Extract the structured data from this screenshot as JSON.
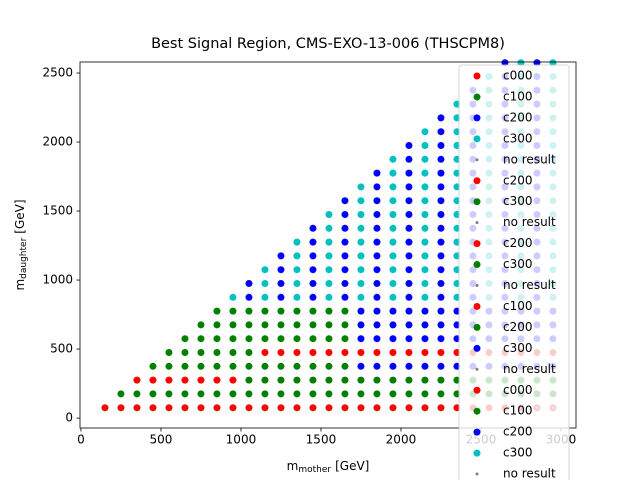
{
  "chart_data": {
    "type": "scatter",
    "title": "Best Signal Region, CMS-EXO-13-006 (THSCPM8)",
    "xlabel": {
      "base": "m",
      "sub": "mother",
      "unit": "[GeV]"
    },
    "ylabel": {
      "base": "m",
      "sub": "daughter",
      "unit": "[GeV]"
    },
    "xlim": [
      -6,
      3094
    ],
    "ylim": [
      -72,
      2580
    ],
    "xticks": [
      0,
      500,
      1000,
      1500,
      2000,
      2500,
      3000
    ],
    "yticks": [
      0,
      500,
      1000,
      1500,
      2000,
      2500
    ],
    "grid": false,
    "legend_loc": "upper right",
    "series": [
      {
        "name": "c000",
        "color": "#ff0000",
        "marker_size": 3.5,
        "x": [
          150,
          250,
          350,
          450,
          550,
          650,
          750,
          850,
          950,
          1050,
          1150,
          1250,
          1350,
          1450,
          1550,
          1650,
          1750,
          1850,
          1950,
          2050,
          2150,
          2250,
          2350,
          2450,
          2550,
          2650,
          2750,
          2850,
          2950,
          350,
          450,
          550,
          650,
          750,
          850,
          950,
          1150,
          1250,
          1350,
          1450,
          1550,
          1650,
          1750,
          1850,
          1950,
          2050,
          2150,
          2250,
          2350,
          2450,
          2550,
          2650,
          2750,
          2850,
          2950
        ],
        "y": [
          75,
          75,
          75,
          75,
          75,
          75,
          75,
          75,
          75,
          75,
          75,
          75,
          75,
          75,
          75,
          75,
          75,
          75,
          75,
          75,
          75,
          75,
          75,
          75,
          75,
          75,
          75,
          75,
          75,
          275,
          275,
          275,
          275,
          275,
          275,
          275,
          475,
          475,
          475,
          475,
          475,
          475,
          475,
          475,
          475,
          475,
          475,
          475,
          475,
          475,
          475,
          475,
          475,
          475,
          475
        ]
      },
      {
        "name": "c100",
        "color": "#008000",
        "marker_size": 3.5,
        "x": [
          250,
          350,
          450,
          550,
          650,
          750,
          850,
          950,
          1050,
          1150,
          1250,
          1350,
          1450,
          1550,
          1650,
          1750,
          1850,
          1950,
          2050,
          2150,
          2250,
          2350,
          2450,
          2550,
          2650,
          2750,
          2850,
          2950,
          1050,
          1150,
          1250,
          1350,
          1450,
          1550,
          1650,
          1750,
          1850,
          1950,
          2050,
          2150,
          2250,
          2350,
          2450,
          2550,
          2650,
          2750,
          2850,
          2950,
          450,
          550,
          650,
          750,
          850,
          950,
          1050,
          1150,
          1250,
          1350,
          1450,
          1550,
          1650,
          550,
          650,
          750,
          850,
          950,
          1050,
          650,
          750,
          850,
          950,
          1050,
          1150,
          1250,
          1350,
          1450,
          1550,
          1650,
          750,
          850,
          950,
          1050,
          1150,
          1250,
          1350,
          1450,
          1550,
          1650,
          850,
          950,
          1050,
          1150,
          1250,
          1350,
          1450,
          1550,
          1650
        ],
        "y": [
          175,
          175,
          175,
          175,
          175,
          175,
          175,
          175,
          175,
          175,
          175,
          175,
          175,
          175,
          175,
          175,
          175,
          175,
          175,
          175,
          175,
          175,
          175,
          175,
          175,
          175,
          175,
          175,
          275,
          275,
          275,
          275,
          275,
          275,
          275,
          275,
          275,
          275,
          275,
          275,
          275,
          275,
          275,
          275,
          275,
          275,
          275,
          275,
          375,
          375,
          375,
          375,
          375,
          375,
          375,
          375,
          375,
          375,
          375,
          375,
          375,
          475,
          475,
          475,
          475,
          475,
          475,
          575,
          575,
          575,
          575,
          575,
          575,
          575,
          575,
          575,
          575,
          575,
          675,
          675,
          675,
          675,
          675,
          675,
          675,
          675,
          675,
          675,
          775,
          775,
          775,
          775,
          775,
          775,
          775,
          775,
          775
        ]
      },
      {
        "name": "c200",
        "color": "#0000ff",
        "marker_size": 3.5,
        "x": [
          1750,
          1850,
          1950,
          2050,
          2150,
          2250,
          2350,
          2450,
          2550,
          2650,
          2750,
          2850,
          2950,
          1750,
          1850,
          1950,
          2050,
          2150,
          2250,
          2350,
          2450,
          2550,
          2650,
          2750,
          2850,
          2950,
          1750,
          1850,
          1950,
          2050,
          2150,
          2250,
          2350,
          2450,
          2550,
          2650,
          2750,
          2850,
          2950,
          1750,
          1850,
          1950,
          2050,
          2150,
          2250,
          2350,
          2450,
          2550,
          2650,
          2750,
          2850,
          2950,
          1050,
          1050,
          1250,
          1250,
          1250,
          1250,
          1450,
          1450,
          1450,
          1450,
          1450,
          1450,
          1650,
          1650,
          1650,
          1650,
          1650,
          1650,
          1650,
          1650,
          1850,
          1850,
          1850,
          1850,
          1850,
          1850,
          1850,
          1850,
          1850,
          1850,
          2050,
          2050,
          2050,
          2050,
          2050,
          2050,
          2050,
          2050,
          2050,
          2050,
          2050,
          2050,
          2250,
          2250,
          2250,
          2250,
          2250,
          2250,
          2250,
          2250,
          2250,
          2250,
          2250,
          2250,
          2250,
          2250,
          2450,
          2450,
          2450,
          2450,
          2450,
          2450,
          2450,
          2450,
          2450,
          2450,
          2450,
          2450,
          2450,
          2450,
          2450,
          2450,
          2650,
          2650,
          2650,
          2650,
          2650,
          2650,
          2650,
          2650,
          2650,
          2650,
          2650,
          2650,
          2650,
          2650,
          2650,
          2650,
          2650,
          2650,
          2850,
          2850,
          2850,
          2850,
          2850,
          2850,
          2850,
          2850,
          2850,
          2850,
          2850,
          2850,
          2850,
          2850,
          2850,
          2850,
          2850,
          2850
        ],
        "y": [
          375,
          375,
          375,
          375,
          375,
          375,
          375,
          375,
          375,
          375,
          375,
          375,
          375,
          575,
          575,
          575,
          575,
          575,
          575,
          575,
          575,
          575,
          575,
          575,
          575,
          575,
          675,
          675,
          675,
          675,
          675,
          675,
          675,
          675,
          675,
          675,
          675,
          675,
          675,
          775,
          775,
          775,
          775,
          775,
          775,
          775,
          775,
          775,
          775,
          775,
          775,
          775,
          875,
          975,
          875,
          975,
          1075,
          1175,
          875,
          975,
          1075,
          1175,
          1275,
          1375,
          875,
          975,
          1075,
          1175,
          1275,
          1375,
          1475,
          1575,
          875,
          975,
          1075,
          1175,
          1275,
          1375,
          1475,
          1575,
          1675,
          1775,
          875,
          975,
          1075,
          1175,
          1275,
          1375,
          1475,
          1575,
          1675,
          1775,
          1875,
          1975,
          875,
          975,
          1075,
          1175,
          1275,
          1375,
          1475,
          1575,
          1675,
          1775,
          1875,
          1975,
          2075,
          2175,
          875,
          975,
          1075,
          1175,
          1275,
          1375,
          1475,
          1575,
          1675,
          1775,
          1875,
          1975,
          2075,
          2175,
          2275,
          2375,
          875,
          975,
          1075,
          1175,
          1275,
          1375,
          1475,
          1575,
          1675,
          1775,
          1875,
          1975,
          2075,
          2175,
          2275,
          2375,
          2475,
          2575,
          875,
          975,
          1075,
          1175,
          1275,
          1375,
          1475,
          1575,
          1675,
          1775,
          1875,
          1975,
          2075,
          2175,
          2275,
          2375,
          2475,
          2575
        ]
      },
      {
        "name": "c300",
        "color": "#00bfbf",
        "marker_size": 3.5,
        "x": [
          950,
          1150,
          1150,
          1150,
          1350,
          1350,
          1350,
          1350,
          1350,
          1550,
          1550,
          1550,
          1550,
          1550,
          1550,
          1550,
          1750,
          1750,
          1750,
          1750,
          1750,
          1750,
          1750,
          1750,
          1750,
          1950,
          1950,
          1950,
          1950,
          1950,
          1950,
          1950,
          1950,
          1950,
          1950,
          1950,
          2150,
          2150,
          2150,
          2150,
          2150,
          2150,
          2150,
          2150,
          2150,
          2150,
          2150,
          2150,
          2150,
          2350,
          2350,
          2350,
          2350,
          2350,
          2350,
          2350,
          2350,
          2350,
          2350,
          2350,
          2350,
          2350,
          2350,
          2350,
          2550,
          2550,
          2550,
          2550,
          2550,
          2550,
          2550,
          2550,
          2550,
          2550,
          2550,
          2550,
          2550,
          2550,
          2550,
          2550,
          2550,
          2750,
          2750,
          2750,
          2750,
          2750,
          2750,
          2750,
          2750,
          2750,
          2750,
          2750,
          2750,
          2750,
          2750,
          2750,
          2750,
          2750,
          2750,
          2950,
          2950,
          2950,
          2950,
          2950,
          2950,
          2950,
          2950,
          2950,
          2950,
          2950,
          2950,
          2950,
          2950,
          2950,
          2950,
          2950,
          2950
        ],
        "y": [
          875,
          875,
          975,
          1075,
          875,
          975,
          1075,
          1175,
          1275,
          875,
          975,
          1075,
          1175,
          1275,
          1375,
          1475,
          875,
          975,
          1075,
          1175,
          1275,
          1375,
          1475,
          1575,
          1675,
          875,
          975,
          1075,
          1175,
          1275,
          1375,
          1475,
          1575,
          1675,
          1775,
          1875,
          875,
          975,
          1075,
          1175,
          1275,
          1375,
          1475,
          1575,
          1675,
          1775,
          1875,
          1975,
          2075,
          875,
          975,
          1075,
          1175,
          1275,
          1375,
          1475,
          1575,
          1675,
          1775,
          1875,
          1975,
          2075,
          2175,
          2275,
          875,
          975,
          1075,
          1175,
          1275,
          1375,
          1475,
          1575,
          1675,
          1775,
          1875,
          1975,
          2075,
          2175,
          2275,
          2375,
          2475,
          875,
          975,
          1075,
          1175,
          1275,
          1375,
          1475,
          1575,
          1675,
          1775,
          1875,
          1975,
          2075,
          2175,
          2275,
          2375,
          2475,
          2575,
          875,
          975,
          1075,
          1175,
          1275,
          1375,
          1475,
          1575,
          1675,
          1775,
          1875,
          1975,
          2075,
          2175,
          2275,
          2375,
          2475,
          2575
        ]
      },
      {
        "name": "no result",
        "color": "#808080",
        "marker_size": 1.5,
        "x": [
          2850,
          2950
        ],
        "y": [
          75,
          75
        ]
      },
      {
        "name": "c200",
        "color": "#ff0000",
        "marker_size": 3.5
      },
      {
        "name": "c300",
        "color": "#008000",
        "marker_size": 3.5
      },
      {
        "name": "no result",
        "color": "#808080",
        "marker_size": 1.5
      },
      {
        "name": "c200",
        "color": "#ff0000",
        "marker_size": 3.5
      },
      {
        "name": "c300",
        "color": "#008000",
        "marker_size": 3.5
      },
      {
        "name": "no result",
        "color": "#808080",
        "marker_size": 1.5
      },
      {
        "name": "c100",
        "color": "#ff0000",
        "marker_size": 3.5
      },
      {
        "name": "c200",
        "color": "#008000",
        "marker_size": 3.5
      },
      {
        "name": "c300",
        "color": "#0000ff",
        "marker_size": 3.5
      },
      {
        "name": "no result",
        "color": "#808080",
        "marker_size": 1.5
      },
      {
        "name": "c000",
        "color": "#ff0000",
        "marker_size": 3.5
      },
      {
        "name": "c100",
        "color": "#008000",
        "marker_size": 3.5
      },
      {
        "name": "c200",
        "color": "#0000ff",
        "marker_size": 3.5
      },
      {
        "name": "c300",
        "color": "#00bfbf",
        "marker_size": 3.5
      },
      {
        "name": "no result",
        "color": "#808080",
        "marker_size": 1.5
      }
    ]
  }
}
